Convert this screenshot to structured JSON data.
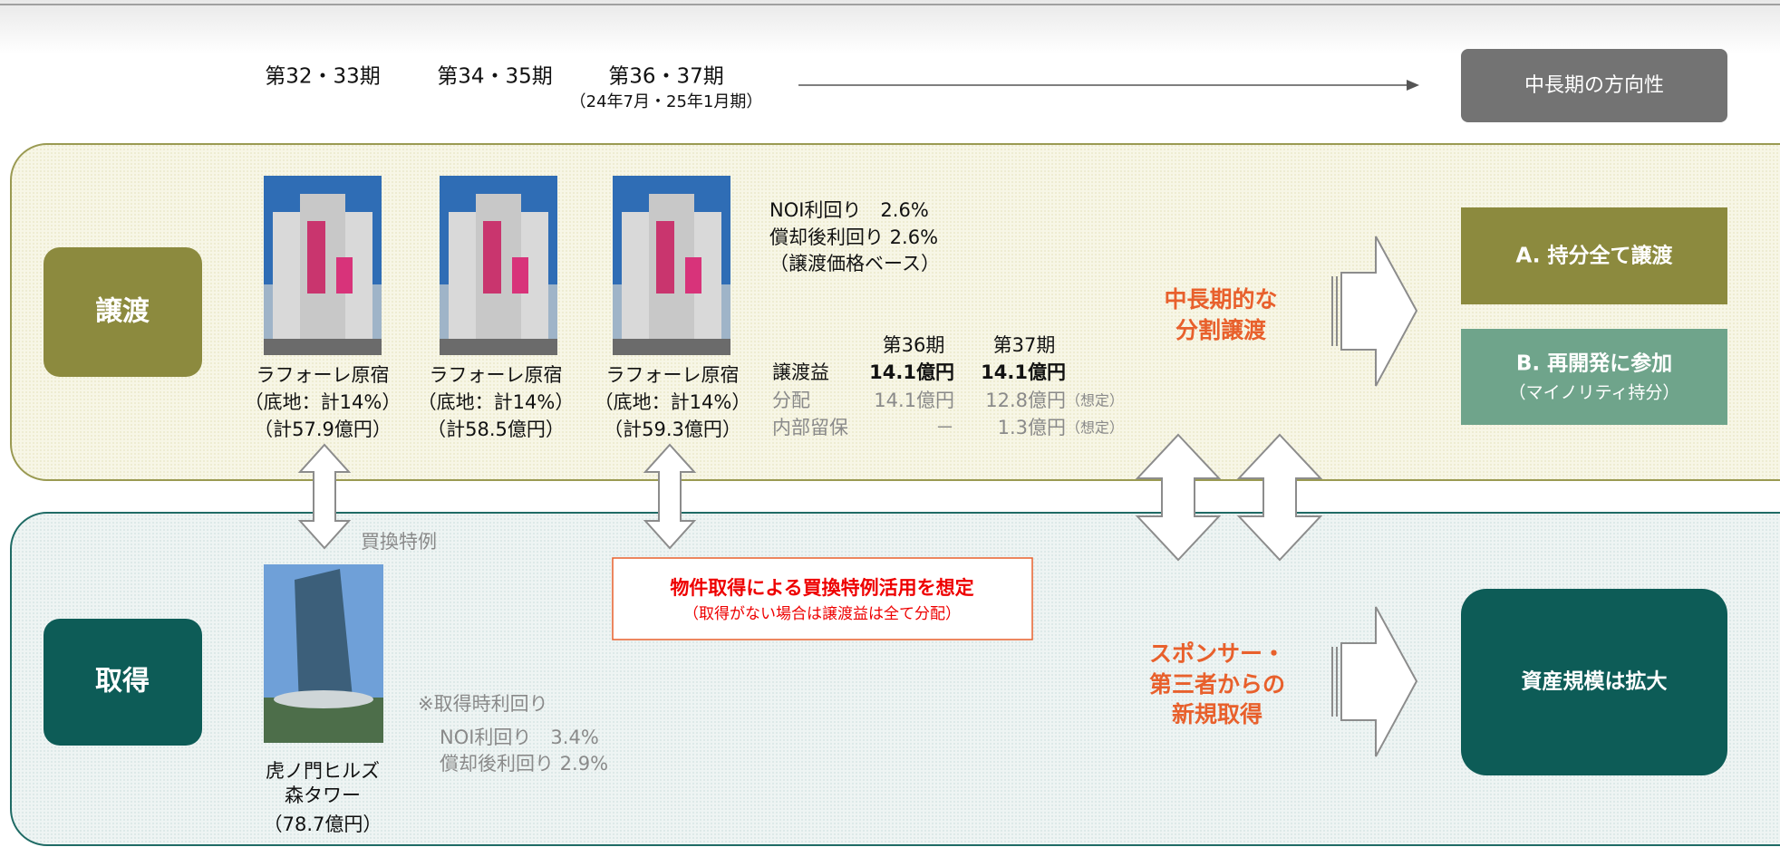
{
  "periods": [
    {
      "label": "第32・33期"
    },
    {
      "label": "第34・35期"
    },
    {
      "label": "第36・37期",
      "sub": "（24年7月・25年1月期）"
    }
  ],
  "direction": "中長期の方向性",
  "transfer": {
    "label": "譲渡",
    "properties": [
      {
        "name": "ラフォーレ原宿",
        "share": "（底地：計14%）",
        "price": "（計57.9億円）"
      },
      {
        "name": "ラフォーレ原宿",
        "share": "（底地：計14%）",
        "price": "（計58.5億円）"
      },
      {
        "name": "ラフォーレ原宿",
        "share": "（底地：計14%）",
        "price": "（計59.3億円）"
      }
    ],
    "yields": [
      "NOI利回り　2.6%",
      "償却後利回り 2.6%",
      "（譲渡価格ベース）"
    ],
    "gains": {
      "headers": [
        "第36期",
        "第37期"
      ],
      "rows": [
        [
          "譲渡益",
          "14.1億円",
          "14.1億円",
          ""
        ],
        [
          "分配",
          "14.1億円",
          "12.8億円",
          "（想定）"
        ],
        [
          "内部留保",
          "－",
          "1.3億円",
          "（想定）"
        ]
      ]
    },
    "strategy": [
      "中長期的な",
      "分割譲渡"
    ],
    "options": [
      {
        "title": "A. 持分全て譲渡"
      },
      {
        "title": "B. 再開発に参加",
        "sub": "（マイノリティ持分）"
      }
    ]
  },
  "acquisition": {
    "label": "取得",
    "exchange": "買換特例",
    "property": {
      "name": [
        "虎ノ門ヒルズ",
        "森タワー"
      ],
      "price": "（78.7億円）"
    },
    "yields": [
      "※取得時利回り",
      "NOI利回り　3.4%",
      "償却後利回り 2.9%"
    ],
    "notice": [
      "物件取得による買換特例活用を想定",
      "（取得がない場合は譲渡益は全て分配）"
    ],
    "strategy": [
      "スポンサー・",
      "第三者からの",
      "新規取得"
    ],
    "result": "資産規模は拡大"
  }
}
